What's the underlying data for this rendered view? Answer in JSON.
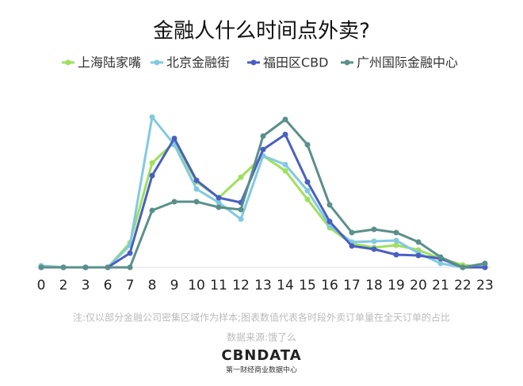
{
  "chart_data": {
    "type": "line",
    "title": "金融人什么时间点外卖?",
    "categories": [
      "0",
      "2",
      "3",
      "6",
      "7",
      "8",
      "9",
      "10",
      "11",
      "12",
      "13",
      "14",
      "15",
      "16",
      "17",
      "18",
      "19",
      "20",
      "21",
      "22",
      "23"
    ],
    "series": [
      {
        "name": "上海陆家嘴",
        "color": "#9ee05c",
        "values": [
          1,
          0,
          0,
          0,
          15.5,
          66,
          79,
          54,
          44,
          57,
          70.5,
          61,
          43,
          25,
          15,
          12.5,
          14,
          11,
          5.5,
          1.5,
          0
        ]
      },
      {
        "name": "北京金融街",
        "color": "#82c9e0",
        "values": [
          1,
          0,
          0,
          0,
          14,
          95,
          77.5,
          49.5,
          41,
          30.5,
          70.5,
          65,
          48.5,
          26.5,
          16,
          16.5,
          17,
          9,
          2.5,
          0,
          1
        ]
      },
      {
        "name": "福田区CBD",
        "color": "#4a5fc1",
        "values": [
          0,
          0,
          0,
          0,
          9,
          58,
          81.5,
          55,
          44,
          41,
          74.5,
          84,
          54,
          29,
          13.5,
          11.5,
          8,
          7.5,
          5.5,
          0,
          0
        ]
      },
      {
        "name": "广州国际金融中心",
        "color": "#5a8f8a",
        "values": [
          0,
          0,
          0,
          0,
          0,
          36,
          41.5,
          41.5,
          38,
          36.5,
          83,
          93.5,
          77.5,
          39.5,
          22,
          24,
          22,
          16,
          6.5,
          0,
          2.5
        ]
      }
    ],
    "ylim": [
      0,
      100
    ],
    "note": "注:仅以部分金融公司密集区域作为样本;图表数值代表各时段外卖订单量在全天订单的占比",
    "source": "数据来源:饿了么",
    "logo": "CBNDATA",
    "logo_subtitle": "第一财经商业数据中心"
  }
}
